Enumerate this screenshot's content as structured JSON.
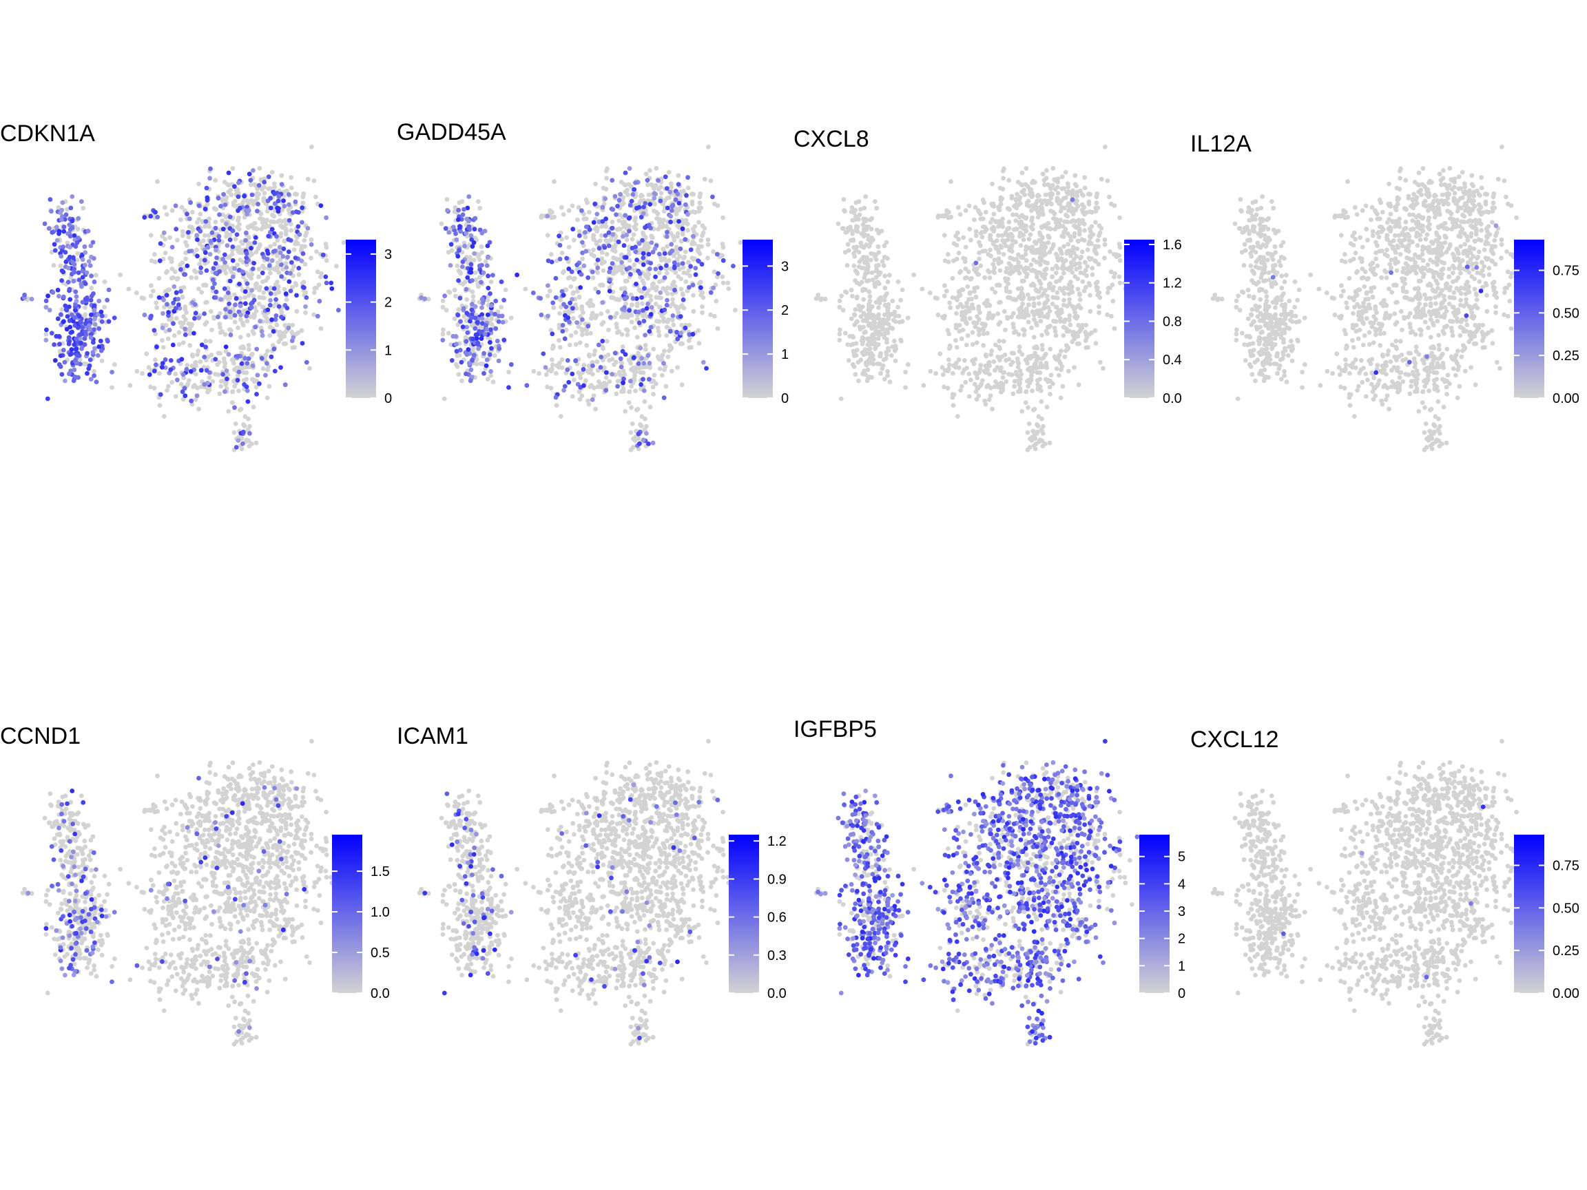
{
  "chart_data": [
    {
      "type": "scatter",
      "title": "CDKN1A",
      "legend_ticks": [
        "0",
        "1",
        "2",
        "3"
      ],
      "color_range": [
        0,
        3.3
      ],
      "expression_level": 0.3,
      "colors": {
        "low": "#d3d3d3",
        "high": "#0000ff"
      }
    },
    {
      "type": "scatter",
      "title": "GADD45A",
      "legend_ticks": [
        "0",
        "1",
        "2",
        "3"
      ],
      "color_range": [
        0,
        3.6
      ],
      "expression_level": 0.25,
      "colors": {
        "low": "#d3d3d3",
        "high": "#0000ff"
      }
    },
    {
      "type": "scatter",
      "title": "CXCL8",
      "legend_ticks": [
        "0.0",
        "0.4",
        "0.8",
        "1.2",
        "1.6"
      ],
      "color_range": [
        0,
        1.65
      ],
      "expression_level": 0.002,
      "colors": {
        "low": "#d3d3d3",
        "high": "#0000ff"
      }
    },
    {
      "type": "scatter",
      "title": "IL12A",
      "legend_ticks": [
        "0.00",
        "0.25",
        "0.50",
        "0.75"
      ],
      "color_range": [
        0,
        0.93
      ],
      "expression_level": 0.006,
      "colors": {
        "low": "#d3d3d3",
        "high": "#0000ff"
      }
    },
    {
      "type": "scatter",
      "title": "CCND1",
      "legend_ticks": [
        "0.0",
        "0.5",
        "1.0",
        "1.5"
      ],
      "color_range": [
        0,
        1.95
      ],
      "expression_level": 0.05,
      "colors": {
        "low": "#d3d3d3",
        "high": "#0000ff"
      }
    },
    {
      "type": "scatter",
      "title": "ICAM1",
      "legend_ticks": [
        "0.0",
        "0.3",
        "0.6",
        "0.9",
        "1.2"
      ],
      "color_range": [
        0,
        1.25
      ],
      "expression_level": 0.03,
      "colors": {
        "low": "#d3d3d3",
        "high": "#0000ff"
      }
    },
    {
      "type": "scatter",
      "title": "IGFBP5",
      "legend_ticks": [
        "0",
        "1",
        "2",
        "3",
        "4",
        "5"
      ],
      "color_range": [
        0,
        5.8
      ],
      "expression_level": 0.65,
      "colors": {
        "low": "#d3d3d3",
        "high": "#0000ff"
      }
    },
    {
      "type": "scatter",
      "title": "CXCL12",
      "legend_ticks": [
        "0.00",
        "0.25",
        "0.50",
        "0.75"
      ],
      "color_range": [
        0,
        0.93
      ],
      "expression_level": 0.003,
      "colors": {
        "low": "#d3d3d3",
        "high": "#0000ff"
      }
    }
  ]
}
